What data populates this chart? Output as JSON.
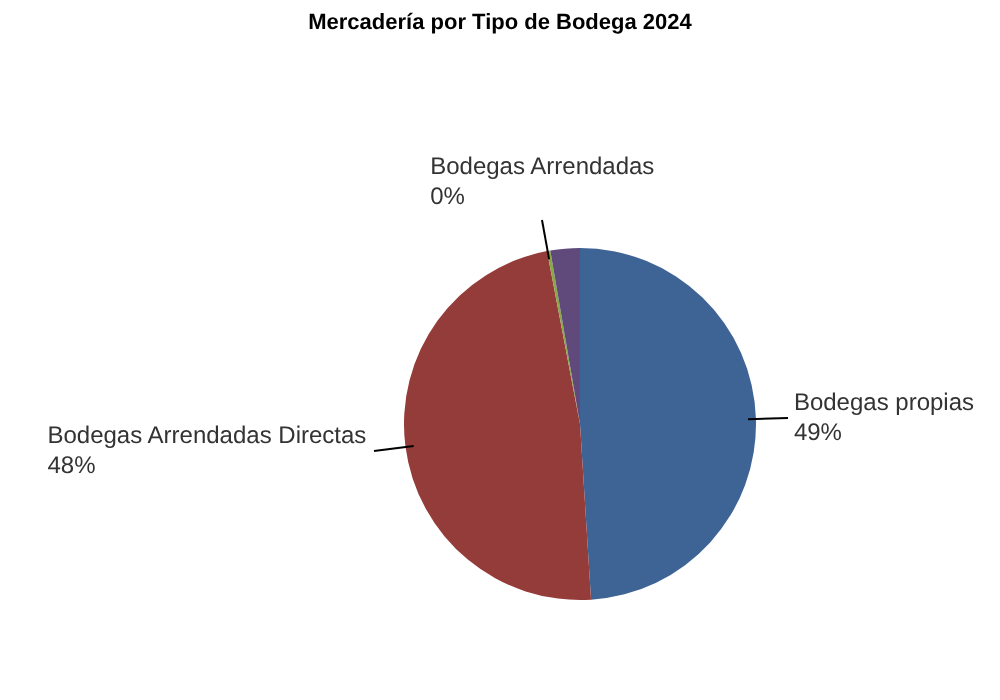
{
  "chart_data": {
    "type": "pie",
    "title": "Mercadería por Tipo de Bodega 2024",
    "categories": [
      "Bodegas propias",
      "Bodegas Arrendadas Directas",
      "Bodegas Arrendadas",
      null
    ],
    "values": [
      49,
      48,
      0.3,
      2.7
    ],
    "value_labels": [
      "49%",
      "48%",
      "0%",
      null
    ],
    "colors": [
      "#3e6496",
      "#943c3a",
      "#8aa74a",
      "#604a7b"
    ],
    "legend": false
  }
}
